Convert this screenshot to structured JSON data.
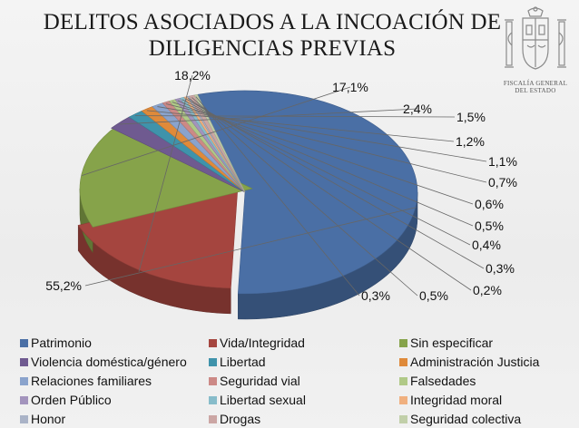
{
  "title_line1": "DELITOS ASOCIADOS A LA INCOACIÓN DE",
  "title_line2": "DILIGENCIAS PREVIAS",
  "logo": {
    "text_line1": "FISCALÍA GENERAL",
    "text_line2": "DEL ESTADO"
  },
  "chart_data": {
    "type": "pie",
    "title": "DELITOS ASOCIADOS A LA INCOACIÓN DE DILIGENCIAS PREVIAS",
    "labels": [
      "Patrimonio",
      "Vida/Integridad",
      "Sin especificar",
      "Violencia doméstica/género",
      "Libertad",
      "Administración Justicia",
      "Relaciones familiares",
      "Seguridad vial",
      "Falsedades",
      "Orden Público",
      "Libertad sexual",
      "Integridad moral",
      "Honor",
      "Drogas",
      "Seguridad colectiva"
    ],
    "values": [
      55.2,
      18.2,
      17.1,
      2.4,
      1.5,
      1.2,
      1.1,
      0.7,
      0.6,
      0.5,
      0.4,
      0.3,
      0.2,
      0.5,
      0.3
    ],
    "value_labels": [
      "55,2%",
      "18,2%",
      "17,1%",
      "2,4%",
      "1,5%",
      "1,2%",
      "1,1%",
      "0,7%",
      "0,6%",
      "0,5%",
      "0,4%",
      "0,3%",
      "0,2%",
      "0,5%",
      "0,3%"
    ],
    "colors": [
      "#4a6fa5",
      "#a5453f",
      "#86a34a",
      "#6f5a90",
      "#3f93ab",
      "#df8a3a",
      "#8aa3cc",
      "#cc8986",
      "#b0c987",
      "#a394bd",
      "#87bcca",
      "#f0b07f",
      "#aab3c7",
      "#cba6a4",
      "#c1cfa9"
    ],
    "legend_position": "bottom",
    "style": "3d-exploded"
  }
}
